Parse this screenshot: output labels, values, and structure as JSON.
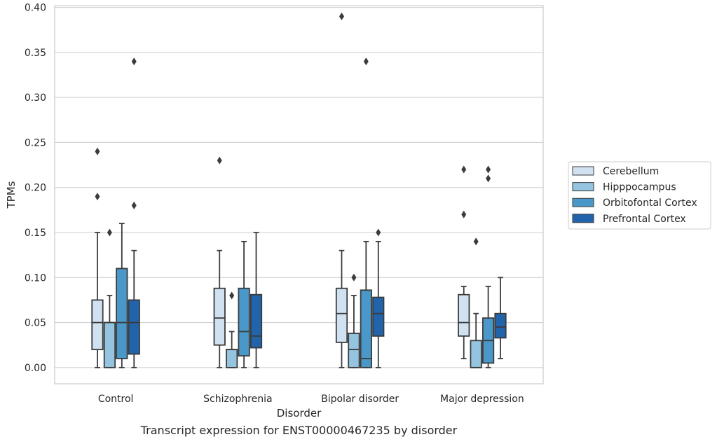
{
  "caption": "Transcript expression for ENST00000467235 by disorder",
  "chart_data": {
    "type": "box",
    "xlabel": "Disorder",
    "ylabel": "TPMs",
    "ylim": [
      -0.018,
      0.402
    ],
    "yticks": [
      "0.00",
      "0.05",
      "0.10",
      "0.15",
      "0.20",
      "0.25",
      "0.30",
      "0.35",
      "0.40"
    ],
    "grid": "horizontal",
    "legend_position": "right",
    "categories": [
      "Control",
      "Schizophrenia",
      "Bipolar disorder",
      "Major depression"
    ],
    "series": [
      {
        "name": "Cerebellum",
        "color": "#d0e1f2",
        "boxes": [
          {
            "whisker_low": 0.0,
            "q1": 0.02,
            "median": 0.05,
            "q3": 0.075,
            "whisker_high": 0.15,
            "outliers": [
              0.24,
              0.19
            ]
          },
          {
            "whisker_low": 0.0,
            "q1": 0.025,
            "median": 0.055,
            "q3": 0.088,
            "whisker_high": 0.13,
            "outliers": [
              0.23
            ]
          },
          {
            "whisker_low": 0.0,
            "q1": 0.028,
            "median": 0.06,
            "q3": 0.088,
            "whisker_high": 0.13,
            "outliers": [
              0.39
            ]
          },
          {
            "whisker_low": 0.01,
            "q1": 0.035,
            "median": 0.05,
            "q3": 0.081,
            "whisker_high": 0.09,
            "outliers": [
              0.22,
              0.17
            ]
          }
        ]
      },
      {
        "name": "Hipppocampus",
        "color": "#94c4df",
        "boxes": [
          {
            "whisker_low": 0.0,
            "q1": 0.0,
            "median": 0.05,
            "q3": 0.05,
            "whisker_high": 0.08,
            "outliers": [
              0.15
            ]
          },
          {
            "whisker_low": 0.0,
            "q1": 0.0,
            "median": 0.02,
            "q3": 0.02,
            "whisker_high": 0.04,
            "outliers": [
              0.08
            ]
          },
          {
            "whisker_low": 0.0,
            "q1": 0.0,
            "median": 0.02,
            "q3": 0.038,
            "whisker_high": 0.08,
            "outliers": [
              0.1
            ]
          },
          {
            "whisker_low": 0.0,
            "q1": 0.0,
            "median": 0.0,
            "q3": 0.03,
            "whisker_high": 0.06,
            "outliers": [
              0.14
            ]
          }
        ]
      },
      {
        "name": "Orbitofontal Cortex",
        "color": "#4a98c9",
        "boxes": [
          {
            "whisker_low": 0.0,
            "q1": 0.01,
            "median": 0.05,
            "q3": 0.11,
            "whisker_high": 0.16,
            "outliers": []
          },
          {
            "whisker_low": 0.0,
            "q1": 0.013,
            "median": 0.04,
            "q3": 0.088,
            "whisker_high": 0.14,
            "outliers": []
          },
          {
            "whisker_low": 0.0,
            "q1": 0.0,
            "median": 0.01,
            "q3": 0.086,
            "whisker_high": 0.14,
            "outliers": [
              0.34
            ]
          },
          {
            "whisker_low": 0.0,
            "q1": 0.005,
            "median": 0.03,
            "q3": 0.055,
            "whisker_high": 0.09,
            "outliers": [
              0.22,
              0.21
            ]
          }
        ]
      },
      {
        "name": "Prefrontal Cortex",
        "color": "#2164ab",
        "boxes": [
          {
            "whisker_low": 0.0,
            "q1": 0.015,
            "median": 0.05,
            "q3": 0.075,
            "whisker_high": 0.13,
            "outliers": [
              0.34,
              0.18
            ]
          },
          {
            "whisker_low": 0.0,
            "q1": 0.022,
            "median": 0.035,
            "q3": 0.081,
            "whisker_high": 0.15,
            "outliers": []
          },
          {
            "whisker_low": 0.0,
            "q1": 0.035,
            "median": 0.06,
            "q3": 0.078,
            "whisker_high": 0.14,
            "outliers": [
              0.15
            ]
          },
          {
            "whisker_low": 0.01,
            "q1": 0.033,
            "median": 0.045,
            "q3": 0.06,
            "whisker_high": 0.1,
            "outliers": []
          }
        ]
      }
    ]
  }
}
